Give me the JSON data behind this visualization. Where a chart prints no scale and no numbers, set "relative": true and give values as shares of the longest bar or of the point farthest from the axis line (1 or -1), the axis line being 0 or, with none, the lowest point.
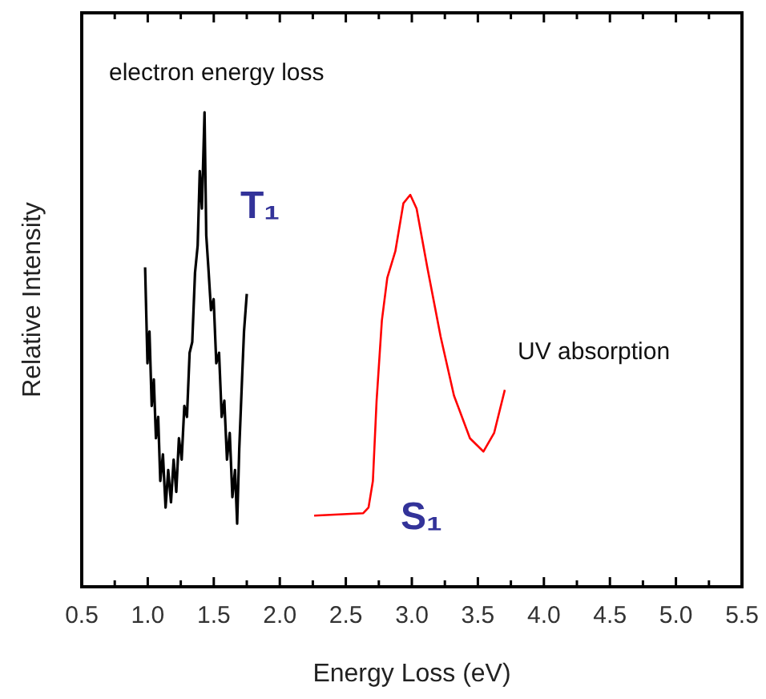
{
  "chart_data": {
    "type": "line",
    "relative": true,
    "xlabel": "Energy Loss (eV)",
    "ylabel": "Relative Intensity",
    "xlim": [
      0.5,
      5.5
    ],
    "xticks": [
      {
        "value": 0.5,
        "label": "0.5"
      },
      {
        "value": 0.75,
        "label": null
      },
      {
        "value": 1,
        "label": "1.0"
      },
      {
        "value": 1.25,
        "label": null
      },
      {
        "value": 1.5,
        "label": "1.5"
      },
      {
        "value": 1.75,
        "label": null
      },
      {
        "value": 2,
        "label": "2.0"
      },
      {
        "value": 2.25,
        "label": null
      },
      {
        "value": 2.5,
        "label": "2.5"
      },
      {
        "value": 2.75,
        "label": null
      },
      {
        "value": 3,
        "label": "3.0"
      },
      {
        "value": 3.25,
        "label": null
      },
      {
        "value": 3.5,
        "label": "3.5"
      },
      {
        "value": 3.75,
        "label": null
      },
      {
        "value": 4,
        "label": "4.0"
      },
      {
        "value": 4.25,
        "label": null
      },
      {
        "value": 4.5,
        "label": "4.5"
      },
      {
        "value": 4.75,
        "label": null
      },
      {
        "value": 5,
        "label": "5.0"
      },
      {
        "value": 5.25,
        "label": null
      },
      {
        "value": 5.5,
        "label": "5.5"
      }
    ],
    "marker": "none",
    "line_style": "solid",
    "series": [
      {
        "color": "#000000",
        "x": [
          0.98,
          0.998,
          1.013,
          1.03,
          1.046,
          1.062,
          1.079,
          1.095,
          1.115,
          1.135,
          1.155,
          1.176,
          1.196,
          1.216,
          1.236,
          1.257,
          1.277,
          1.297,
          1.317,
          1.337,
          1.358,
          1.378,
          1.394,
          1.41,
          1.43,
          1.443,
          1.459,
          1.479,
          1.499,
          1.519,
          1.54,
          1.56,
          1.58,
          1.6,
          1.621,
          1.641,
          1.661,
          1.677,
          1.693,
          1.714,
          1.729,
          1.75
        ],
        "values": [
          0.673,
          0.471,
          0.538,
          0.381,
          0.437,
          0.313,
          0.358,
          0.223,
          0.279,
          0.167,
          0.246,
          0.178,
          0.268,
          0.2,
          0.313,
          0.268,
          0.381,
          0.358,
          0.493,
          0.516,
          0.662,
          0.719,
          0.876,
          0.797,
          1.0,
          0.741,
          0.673,
          0.583,
          0.606,
          0.471,
          0.493,
          0.358,
          0.392,
          0.268,
          0.324,
          0.189,
          0.246,
          0.133,
          0.291,
          0.437,
          0.538,
          0.617
        ]
      },
      {
        "color": "#ff0000",
        "x": [
          2.26,
          2.632,
          2.672,
          2.705,
          2.733,
          2.773,
          2.814,
          2.875,
          2.936,
          2.988,
          3.036,
          3.117,
          3.218,
          3.319,
          3.44,
          3.542,
          3.623,
          3.704
        ],
        "values": [
          0.15,
          0.155,
          0.167,
          0.223,
          0.392,
          0.561,
          0.651,
          0.707,
          0.808,
          0.826,
          0.797,
          0.673,
          0.527,
          0.403,
          0.313,
          0.285,
          0.324,
          0.415
        ]
      }
    ],
    "annotations": [
      "electron energy loss",
      "T₁",
      "UV absorption",
      "S₁"
    ]
  }
}
